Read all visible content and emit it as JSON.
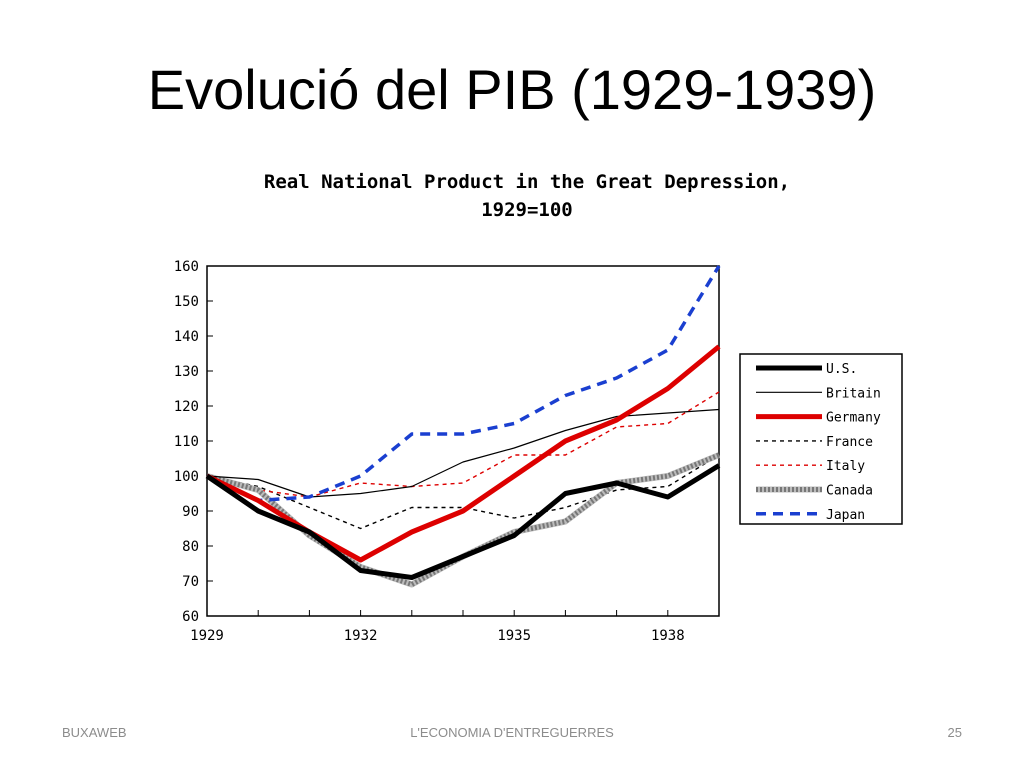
{
  "slide": {
    "title": "Evolució del PIB (1929-1939)",
    "footer_left": "BUXAWEB",
    "footer_center": "L'ECONOMIA D'ENTREGUERRES",
    "footer_right": "25"
  },
  "chart_data": {
    "type": "line",
    "title": "Real National Product in the Great Depression,",
    "subtitle": "1929=100",
    "xlabel": "",
    "ylabel": "",
    "x": [
      1929,
      1930,
      1931,
      1932,
      1933,
      1934,
      1935,
      1936,
      1937,
      1938,
      1939
    ],
    "xlim": [
      1929,
      1939
    ],
    "ylim": [
      60,
      160
    ],
    "x_ticks": [
      1929,
      1932,
      1935,
      1938
    ],
    "y_ticks": [
      60,
      70,
      80,
      90,
      100,
      110,
      120,
      130,
      140,
      150,
      160
    ],
    "grid": false,
    "legend_position": "right",
    "series": [
      {
        "name": "U.S.",
        "color": "#000000",
        "style": "thick",
        "values": [
          100,
          90,
          84,
          73,
          71,
          77,
          83,
          95,
          98,
          94,
          103
        ]
      },
      {
        "name": "Britain",
        "color": "#000000",
        "style": "thin",
        "values": [
          100,
          99,
          94,
          95,
          97,
          104,
          108,
          113,
          117,
          118,
          119
        ]
      },
      {
        "name": "Germany",
        "color": "#dd0000",
        "style": "thick",
        "values": [
          100,
          93,
          84,
          76,
          84,
          90,
          100,
          110,
          116,
          125,
          137
        ]
      },
      {
        "name": "France",
        "color": "#000000",
        "style": "dash",
        "values": [
          100,
          97,
          91,
          85,
          91,
          91,
          88,
          91,
          96,
          97,
          106
        ]
      },
      {
        "name": "Italy",
        "color": "#dd0000",
        "style": "dash",
        "values": [
          100,
          96,
          94,
          98,
          97,
          98,
          106,
          106,
          114,
          115,
          124
        ]
      },
      {
        "name": "Canada",
        "color": "#777777",
        "style": "hatched",
        "values": [
          100,
          96,
          83,
          74,
          69,
          77,
          84,
          87,
          98,
          100,
          106
        ]
      },
      {
        "name": "Japan",
        "color": "#1a3fd0",
        "style": "bigdash",
        "values": [
          100,
          93,
          94,
          100,
          112,
          112,
          115,
          123,
          128,
          136,
          160
        ]
      }
    ]
  }
}
